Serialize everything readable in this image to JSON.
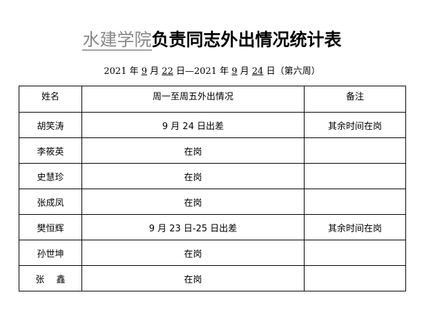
{
  "title": {
    "org": "水建学院",
    "rest": "负责同志外出情况统计表"
  },
  "subtitle": {
    "y1": "2021",
    "m1": "9",
    "d1": "22",
    "y2": "2021",
    "m2": "9",
    "d2": "24",
    "week": "（第六周）"
  },
  "table": {
    "headers": [
      "姓名",
      "周一至周五外出情况",
      "备注"
    ],
    "rows": [
      {
        "name": "胡笑涛",
        "status": "9 月 24 日出差",
        "note": "其余时间在岗"
      },
      {
        "name": "李筱英",
        "status": "在岗",
        "note": ""
      },
      {
        "name": "史慧珍",
        "status": "在岗",
        "note": ""
      },
      {
        "name": "张成凤",
        "status": "在岗",
        "note": ""
      },
      {
        "name": "樊恒辉",
        "status": "9 月 23 日-25 日出差",
        "note": "其余时间在岗"
      },
      {
        "name": "孙世坤",
        "status": "在岗",
        "note": ""
      },
      {
        "name": "张　 鑫",
        "status": "在岗",
        "note": ""
      }
    ]
  }
}
